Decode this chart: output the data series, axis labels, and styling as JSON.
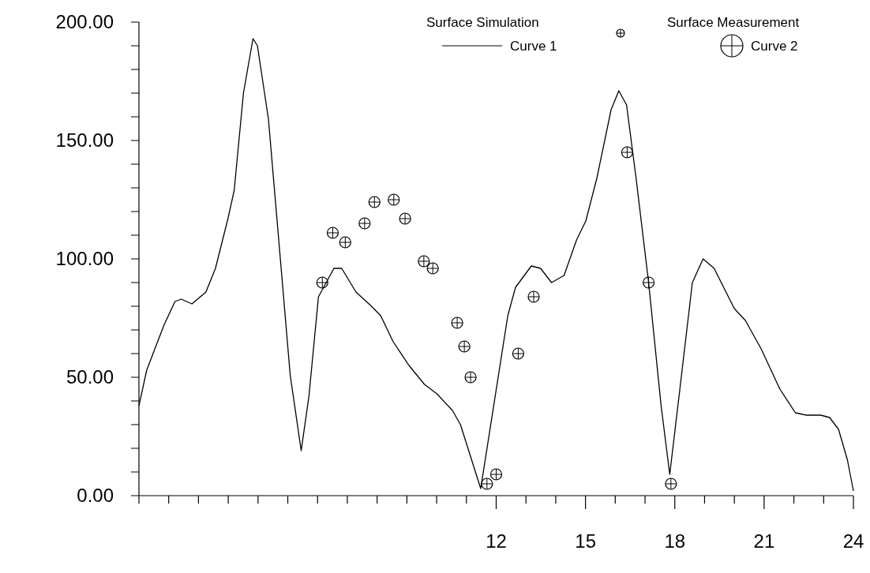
{
  "chart_data": {
    "type": "line",
    "xlim": [
      0,
      24
    ],
    "xticks": [
      {
        "value": 0,
        "label": null
      },
      {
        "value": 1,
        "label": null
      },
      {
        "value": 2,
        "label": null
      },
      {
        "value": 3,
        "label": null
      },
      {
        "value": 4,
        "label": null
      },
      {
        "value": 5,
        "label": null
      },
      {
        "value": 6,
        "label": null
      },
      {
        "value": 7,
        "label": null
      },
      {
        "value": 8,
        "label": null
      },
      {
        "value": 9,
        "label": null
      },
      {
        "value": 10,
        "label": null
      },
      {
        "value": 11,
        "label": null
      },
      12,
      {
        "value": 13,
        "label": null
      },
      {
        "value": 14,
        "label": null
      },
      15,
      {
        "value": 16,
        "label": null
      },
      {
        "value": 17,
        "label": null
      },
      18,
      {
        "value": 19,
        "label": null
      },
      {
        "value": 20,
        "label": null
      },
      21,
      {
        "value": 22,
        "label": null
      },
      {
        "value": 23,
        "label": null
      },
      24
    ],
    "ylim": [
      0,
      200
    ],
    "yticks": [
      {
        "value": 0,
        "label": "0.00"
      },
      {
        "value": 10,
        "label": null
      },
      {
        "value": 20,
        "label": null
      },
      {
        "value": 30,
        "label": null
      },
      {
        "value": 40,
        "label": null
      },
      {
        "value": 50,
        "label": "50.00"
      },
      {
        "value": 60,
        "label": null
      },
      {
        "value": 70,
        "label": null
      },
      {
        "value": 80,
        "label": null
      },
      {
        "value": 90,
        "label": null
      },
      {
        "value": 100,
        "label": "100.00"
      },
      {
        "value": 110,
        "label": null
      },
      {
        "value": 120,
        "label": null
      },
      {
        "value": 130,
        "label": null
      },
      {
        "value": 140,
        "label": null
      },
      {
        "value": 150,
        "label": "150.00"
      },
      {
        "value": 160,
        "label": null
      },
      {
        "value": 170,
        "label": null
      },
      {
        "value": 180,
        "label": null
      },
      {
        "value": 190,
        "label": null
      },
      {
        "value": 200,
        "label": "200.00"
      }
    ],
    "annotations": [
      "Surface  Simulation",
      "Surface Measurement"
    ],
    "legend": "top right",
    "grid": false,
    "series": [
      {
        "name": "Curve 1",
        "color": "#000000",
        "marker": "none",
        "line_style": "solid",
        "x": [
          0,
          0.26,
          0.84,
          1.21,
          1.42,
          1.78,
          2.25,
          2.57,
          2.99,
          3.2,
          3.51,
          3.83,
          3.98,
          4.35,
          4.77,
          5.08,
          5.45,
          5.71,
          6.03,
          6.55,
          6.81,
          7.29,
          7.81,
          8.12,
          8.54,
          9.07,
          9.59,
          10.01,
          10.53,
          10.8,
          11.48,
          12.39,
          12.65,
          13.18,
          13.49,
          13.86,
          14.28,
          14.7,
          15.01,
          15.38,
          15.86,
          16.12,
          16.38,
          16.7,
          17.12,
          17.54,
          17.83,
          18.17,
          18.59,
          18.95,
          19.32,
          20.0,
          20.37,
          20.9,
          21.53,
          22.05,
          22.42,
          22.9,
          23.2,
          23.5,
          23.8,
          24
        ],
        "values": [
          38,
          53,
          72,
          82,
          83,
          81,
          86,
          96,
          117,
          129,
          170,
          193,
          190,
          159,
          97,
          51,
          19,
          42,
          84,
          96,
          96,
          86,
          80,
          76,
          65,
          55,
          47,
          43,
          36,
          30,
          3,
          76,
          88,
          97,
          96,
          90,
          93,
          108,
          116,
          134,
          163,
          171,
          165,
          134,
          90,
          38,
          9,
          45,
          90,
          100,
          96,
          79,
          74,
          62,
          45,
          35,
          34,
          34,
          33,
          28,
          15,
          2
        ]
      },
      {
        "name": "Curve 2",
        "type": "scatter",
        "color": "#000000",
        "marker": "circle",
        "x": [
          6.16,
          6.51,
          6.93,
          7.58,
          7.91,
          8.56,
          8.94,
          9.57,
          9.87,
          10.69,
          10.93,
          11.14,
          11.69,
          12.0,
          12.74,
          13.26,
          16.4,
          17.12,
          17.87
        ],
        "values": [
          90,
          111,
          107,
          115,
          124,
          125,
          117,
          99,
          96,
          73,
          63,
          50,
          5,
          9,
          60,
          84,
          145,
          90,
          5
        ]
      }
    ]
  }
}
